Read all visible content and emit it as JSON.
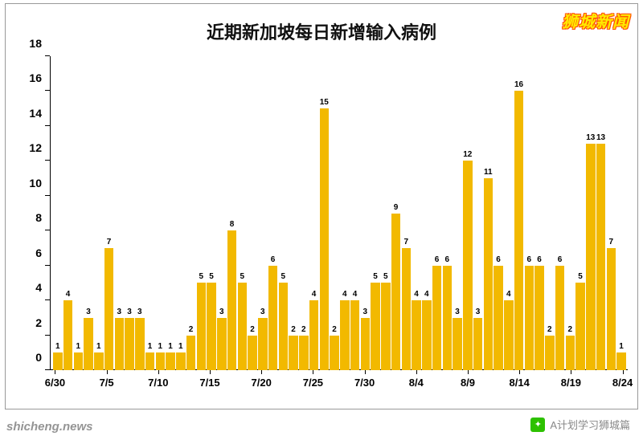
{
  "title": "近期新加坡每日新增输入病例",
  "brand": "狮城新闻",
  "watermark_left": "shicheng.news",
  "watermark_right": "A计划学习狮城篇",
  "chart": {
    "type": "bar",
    "bar_color": "#f2b900",
    "background_color": "#ffffff",
    "axis_color": "#000000",
    "title_fontsize": 22,
    "label_fontsize": 10,
    "tick_fontsize": 14,
    "y": {
      "min": 0,
      "max": 18,
      "step": 2
    },
    "x_ticks": [
      {
        "index": 0,
        "label": "6/30"
      },
      {
        "index": 5,
        "label": "7/5"
      },
      {
        "index": 10,
        "label": "7/10"
      },
      {
        "index": 15,
        "label": "7/15"
      },
      {
        "index": 20,
        "label": "7/20"
      },
      {
        "index": 25,
        "label": "7/25"
      },
      {
        "index": 30,
        "label": "7/30"
      },
      {
        "index": 35,
        "label": "8/4"
      },
      {
        "index": 40,
        "label": "8/9"
      },
      {
        "index": 45,
        "label": "8/14"
      },
      {
        "index": 50,
        "label": "8/19"
      },
      {
        "index": 55,
        "label": "8/24"
      }
    ],
    "values": [
      1,
      4,
      1,
      3,
      1,
      7,
      3,
      3,
      3,
      1,
      1,
      1,
      1,
      2,
      5,
      5,
      3,
      8,
      5,
      2,
      3,
      6,
      5,
      2,
      2,
      4,
      15,
      2,
      4,
      4,
      3,
      5,
      5,
      9,
      7,
      4,
      4,
      6,
      6,
      3,
      12,
      3,
      11,
      6,
      4,
      16,
      6,
      6,
      2,
      6,
      2,
      5,
      13,
      13,
      7,
      1
    ]
  }
}
